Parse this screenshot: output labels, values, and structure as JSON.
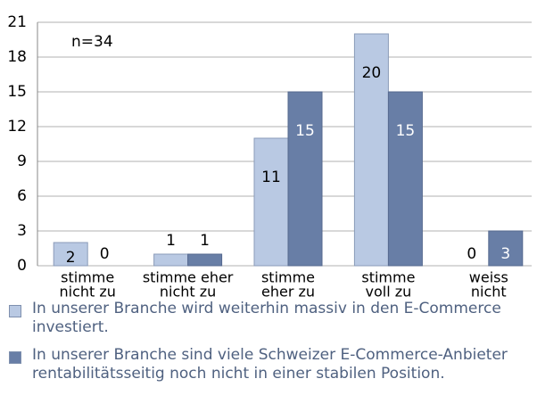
{
  "chart_data": {
    "type": "bar",
    "annotation": "n=34",
    "categories": [
      [
        "stimme",
        "nicht zu"
      ],
      [
        "stimme eher",
        "nicht zu"
      ],
      [
        "stimme",
        "eher zu"
      ],
      [
        "stimme",
        "voll zu"
      ],
      [
        "weiss",
        "nicht"
      ]
    ],
    "series": [
      {
        "name": "In unserer Branche wird weiterhin massiv in den E-Commerce investiert.",
        "color": "#b9c9e3",
        "values": [
          2,
          1,
          11,
          20,
          0
        ]
      },
      {
        "name": "In unserer Branche sind viele Schweizer E-Commerce-Anbieter rentabilitätsseitig noch nicht in einer stabilen Position.",
        "color": "#687ea6",
        "values": [
          0,
          1,
          15,
          15,
          3
        ]
      }
    ],
    "ylim": [
      0,
      21
    ],
    "yticks": [
      0,
      3,
      6,
      9,
      12,
      15,
      18,
      21
    ],
    "grid": true
  }
}
